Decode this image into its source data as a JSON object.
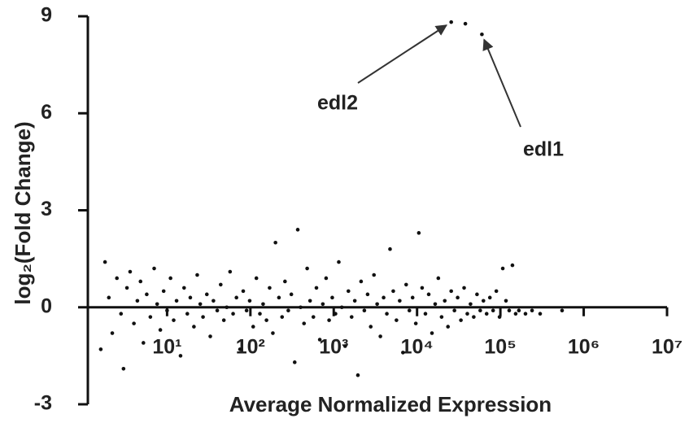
{
  "chart_data": {
    "type": "scatter",
    "xlabel": "Average Normalized Expression",
    "ylabel": "log₂(Fold Change)",
    "xscale": "log",
    "xlim": [
      1.12,
      10000000
    ],
    "ylim": [
      -3,
      9
    ],
    "xticks": [
      {
        "value": 10,
        "label": "10¹"
      },
      {
        "value": 100,
        "label": "10²"
      },
      {
        "value": 1000,
        "label": "10³"
      },
      {
        "value": 10000,
        "label": "10⁴"
      },
      {
        "value": 100000,
        "label": "10⁵"
      },
      {
        "value": 1000000,
        "label": "10⁶"
      },
      {
        "value": 10000000,
        "label": "10⁷"
      }
    ],
    "yticks": [
      -3,
      0,
      3,
      6,
      9
    ],
    "series": [
      {
        "color": "#111111",
        "x": [
          1.6,
          1.8,
          2.0,
          2.2,
          2.5,
          2.8,
          3.0,
          3.3,
          3.6,
          4.0,
          4.4,
          4.8,
          5.2,
          5.7,
          6.3,
          7.0,
          7.6,
          8.3,
          9.1,
          10,
          11,
          12,
          13,
          14.5,
          16,
          17.5,
          19,
          21,
          23,
          25,
          27,
          30,
          33,
          36,
          40,
          44,
          48,
          52,
          57,
          62,
          68,
          75,
          82,
          90,
          98,
          108,
          118,
          130,
          142,
          156,
          170,
          186,
          200,
          220,
          240,
          260,
          285,
          310,
          340,
          370,
          400,
          440,
          480,
          520,
          570,
          620,
          680,
          740,
          810,
          880,
          960,
          1050,
          1150,
          1250,
          1370,
          1500,
          1640,
          1790,
          1950,
          2130,
          2330,
          2550,
          2780,
          3040,
          3320,
          3630,
          3970,
          4340,
          4740,
          5180,
          5660,
          6190,
          6770,
          7400,
          8090,
          8840,
          9660,
          10500,
          11500,
          12600,
          13800,
          15100,
          16500,
          18000,
          19700,
          21500,
          23500,
          25700,
          28100,
          30700,
          33600,
          36700,
          40100,
          43800,
          47900,
          52400,
          57300,
          62600,
          68400,
          74800,
          81800,
          89400,
          97700,
          106800,
          116700,
          127600,
          139500,
          152500,
          166700,
          200000,
          240000,
          300000,
          550000,
          25700,
          38000,
          60000
        ],
        "values": [
          -1.3,
          1.4,
          0.3,
          -0.8,
          0.9,
          -0.2,
          -1.9,
          0.6,
          1.1,
          -0.5,
          0.2,
          0.8,
          -1.1,
          0.4,
          -0.3,
          1.2,
          0.1,
          -0.7,
          0.5,
          -0.1,
          0.9,
          -0.4,
          0.2,
          -1.5,
          0.6,
          -0.2,
          0.3,
          -0.6,
          1.0,
          0.1,
          -0.3,
          0.4,
          -0.9,
          0.2,
          -0.1,
          0.7,
          -0.4,
          0.0,
          1.1,
          -0.2,
          0.3,
          -1.3,
          0.5,
          -0.1,
          0.2,
          -0.6,
          0.9,
          -0.2,
          0.1,
          -0.4,
          0.6,
          -0.8,
          2.0,
          0.3,
          -0.3,
          0.8,
          -0.1,
          0.4,
          -1.7,
          2.4,
          0.0,
          -0.5,
          1.2,
          0.2,
          -0.3,
          0.6,
          -1.0,
          0.1,
          0.9,
          -0.4,
          0.3,
          -0.2,
          1.4,
          0.0,
          -1.2,
          0.5,
          -0.3,
          0.2,
          -2.1,
          0.8,
          -0.1,
          0.4,
          -0.6,
          1.0,
          0.1,
          -0.9,
          0.3,
          -0.2,
          1.8,
          0.5,
          -0.4,
          0.2,
          -1.4,
          0.7,
          -0.1,
          0.3,
          -0.5,
          2.3,
          0.6,
          -0.2,
          0.4,
          -0.8,
          0.1,
          0.9,
          -0.3,
          0.2,
          -0.6,
          0.5,
          -0.1,
          0.3,
          -0.4,
          0.6,
          -0.2,
          0.1,
          -0.3,
          0.4,
          -0.1,
          0.2,
          -0.2,
          0.3,
          -0.1,
          0.5,
          -0.3,
          1.2,
          0.2,
          -0.1,
          1.3,
          -0.2,
          -0.1,
          -0.2,
          -0.1,
          -0.2,
          -0.1,
          8.82,
          8.77,
          8.44
        ]
      }
    ],
    "annotations": [
      {
        "text": "edl2",
        "x": 25700,
        "y": 8.82
      },
      {
        "text": "edl1",
        "x": 60000,
        "y": 8.44
      }
    ]
  }
}
